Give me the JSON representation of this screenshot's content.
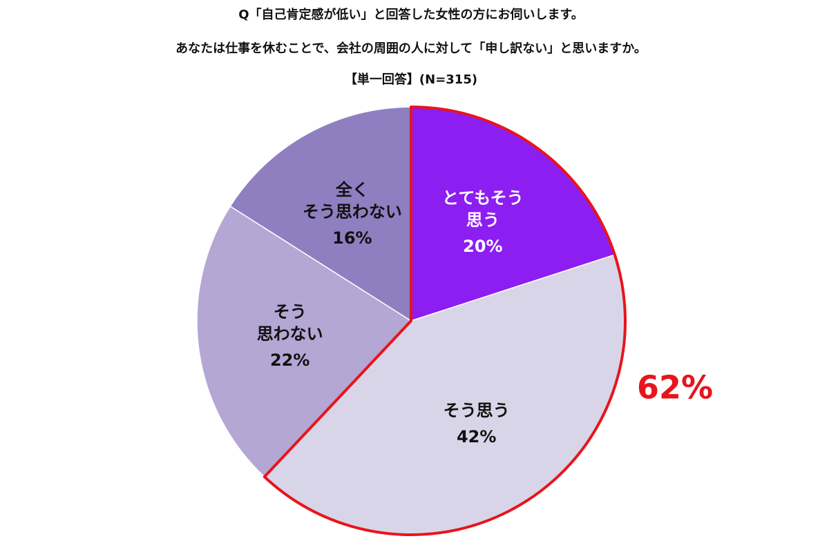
{
  "chart_data": {
    "type": "pie",
    "title": "Q「自己肯定感が低い」と回答した女性の方にお伺いします。",
    "subtitle": "あなたは仕事を休むことで、会社の周囲の人に対して「申し訳ない」と思いますか。",
    "note": "【単一回答】(N=315)",
    "categories": [
      "とてもそう\n思う",
      "そう思う",
      "そう\n思わない",
      "全く\nそう思わない"
    ],
    "values": [
      20,
      42,
      22,
      16
    ],
    "value_labels": [
      "20%",
      "42%",
      "22%",
      "16%"
    ],
    "colors": [
      "#8d1ef2",
      "#d9d5e8",
      "#b4a7d4",
      "#8f7fc1"
    ],
    "highlight": [
      0,
      1
    ],
    "highlight_color": "#e8141c",
    "annotation": "62%"
  }
}
